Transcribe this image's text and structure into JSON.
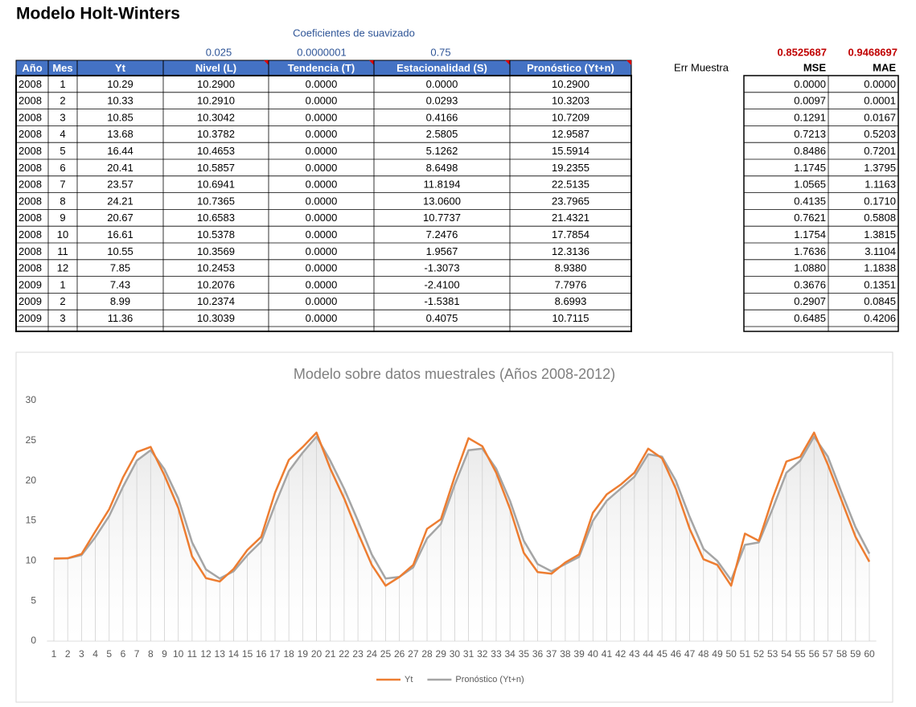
{
  "header": {
    "title": "Modelo Holt-Winters",
    "coef_caption": "Coeficientes de suavizado",
    "coefficients": [
      "0.025",
      "0.0000001",
      "0.75"
    ],
    "errors": [
      "0.8525687",
      "0.9468697"
    ]
  },
  "table": {
    "columns": [
      "Año",
      "Mes",
      "Yt",
      "Nivel (L)",
      "Tendencia (T)",
      "Estacionalidad (S)",
      "Pronóstico (Yt+n)"
    ],
    "rows": [
      [
        "2008",
        "1",
        "10.29",
        "10.2900",
        "0.0000",
        "0.0000",
        "10.2900"
      ],
      [
        "2008",
        "2",
        "10.33",
        "10.2910",
        "0.0000",
        "0.0293",
        "10.3203"
      ],
      [
        "2008",
        "3",
        "10.85",
        "10.3042",
        "0.0000",
        "0.4166",
        "10.7209"
      ],
      [
        "2008",
        "4",
        "13.68",
        "10.3782",
        "0.0000",
        "2.5805",
        "12.9587"
      ],
      [
        "2008",
        "5",
        "16.44",
        "10.4653",
        "0.0000",
        "5.1262",
        "15.5914"
      ],
      [
        "2008",
        "6",
        "20.41",
        "10.5857",
        "0.0000",
        "8.6498",
        "19.2355"
      ],
      [
        "2008",
        "7",
        "23.57",
        "10.6941",
        "0.0000",
        "11.8194",
        "22.5135"
      ],
      [
        "2008",
        "8",
        "24.21",
        "10.7365",
        "0.0000",
        "13.0600",
        "23.7965"
      ],
      [
        "2008",
        "9",
        "20.67",
        "10.6583",
        "0.0000",
        "10.7737",
        "21.4321"
      ],
      [
        "2008",
        "10",
        "16.61",
        "10.5378",
        "0.0000",
        "7.2476",
        "17.7854"
      ],
      [
        "2008",
        "11",
        "10.55",
        "10.3569",
        "0.0000",
        "1.9567",
        "12.3136"
      ],
      [
        "2008",
        "12",
        "7.85",
        "10.2453",
        "0.0000",
        "-1.3073",
        "8.9380"
      ],
      [
        "2009",
        "1",
        "7.43",
        "10.2076",
        "0.0000",
        "-2.4100",
        "7.7976"
      ],
      [
        "2009",
        "2",
        "8.99",
        "10.2374",
        "0.0000",
        "-1.5381",
        "8.6993"
      ],
      [
        "2009",
        "3",
        "11.36",
        "10.3039",
        "0.0000",
        "0.4075",
        "10.7115"
      ]
    ]
  },
  "error_table": {
    "label": "Err Muestra",
    "columns": [
      "MSE",
      "MAE"
    ],
    "rows": [
      [
        "0.0000",
        "0.0000"
      ],
      [
        "0.0097",
        "0.0001"
      ],
      [
        "0.1291",
        "0.0167"
      ],
      [
        "0.7213",
        "0.5203"
      ],
      [
        "0.8486",
        "0.7201"
      ],
      [
        "1.1745",
        "1.3795"
      ],
      [
        "1.0565",
        "1.1163"
      ],
      [
        "0.4135",
        "0.1710"
      ],
      [
        "0.7621",
        "0.5808"
      ],
      [
        "1.1754",
        "1.3815"
      ],
      [
        "1.7636",
        "3.1104"
      ],
      [
        "1.0880",
        "1.1838"
      ],
      [
        "0.3676",
        "0.1351"
      ],
      [
        "0.2907",
        "0.0845"
      ],
      [
        "0.6485",
        "0.4206"
      ]
    ]
  },
  "chart_data": {
    "type": "line",
    "title": "Modelo sobre datos muestrales (Años 2008-2012)",
    "categories": [
      "1",
      "2",
      "3",
      "4",
      "5",
      "6",
      "7",
      "8",
      "9",
      "10",
      "11",
      "12",
      "13",
      "14",
      "15",
      "16",
      "17",
      "18",
      "19",
      "20",
      "21",
      "22",
      "23",
      "24",
      "25",
      "26",
      "27",
      "28",
      "29",
      "30",
      "31",
      "32",
      "33",
      "34",
      "35",
      "36",
      "37",
      "38",
      "39",
      "40",
      "41",
      "42",
      "43",
      "44",
      "45",
      "46",
      "47",
      "48",
      "49",
      "50",
      "51",
      "52",
      "53",
      "54",
      "55",
      "56",
      "57",
      "58",
      "59",
      "60"
    ],
    "series": [
      {
        "name": "Yt",
        "color": "#ed7d31",
        "values": [
          10.29,
          10.33,
          10.85,
          13.68,
          16.44,
          20.41,
          23.57,
          24.21,
          20.67,
          16.61,
          10.55,
          7.85,
          7.43,
          8.99,
          11.36,
          13,
          18.5,
          22.6,
          24.2,
          26,
          21.5,
          17.8,
          13.5,
          9.5,
          6.9,
          8,
          9.5,
          14,
          15.2,
          20.5,
          25.3,
          24.3,
          21,
          16.5,
          11,
          8.6,
          8.4,
          9.8,
          10.8,
          16,
          18.3,
          19.5,
          21,
          24,
          22.8,
          19,
          14,
          10.2,
          9.5,
          6.9,
          13.4,
          12.5,
          17.8,
          22.4,
          23,
          26,
          22,
          17.5,
          13,
          9.9
        ]
      },
      {
        "name": "Pronóstico (Yt+n)",
        "color": "#a5a5a5",
        "values": [
          10.29,
          10.32,
          10.72,
          12.96,
          15.59,
          19.24,
          22.51,
          23.8,
          21.43,
          17.79,
          12.31,
          8.94,
          7.8,
          8.7,
          10.71,
          12.4,
          17,
          21.2,
          23.5,
          25.5,
          22.5,
          19,
          15,
          10.8,
          7.8,
          8,
          9.2,
          12.8,
          14.6,
          19.5,
          23.8,
          24,
          21.5,
          17.5,
          12.5,
          9.6,
          8.7,
          9.6,
          10.5,
          15,
          17.5,
          19,
          20.5,
          23.3,
          23,
          20,
          15.5,
          11.5,
          10,
          7.6,
          12,
          12.3,
          16.5,
          21,
          22.5,
          25.5,
          23,
          18.5,
          14.2,
          10.9
        ]
      }
    ],
    "ylim": [
      0,
      30
    ],
    "yticks": [
      0,
      5,
      10,
      15,
      20,
      25,
      30
    ],
    "grid": false,
    "legend": "bottom"
  }
}
